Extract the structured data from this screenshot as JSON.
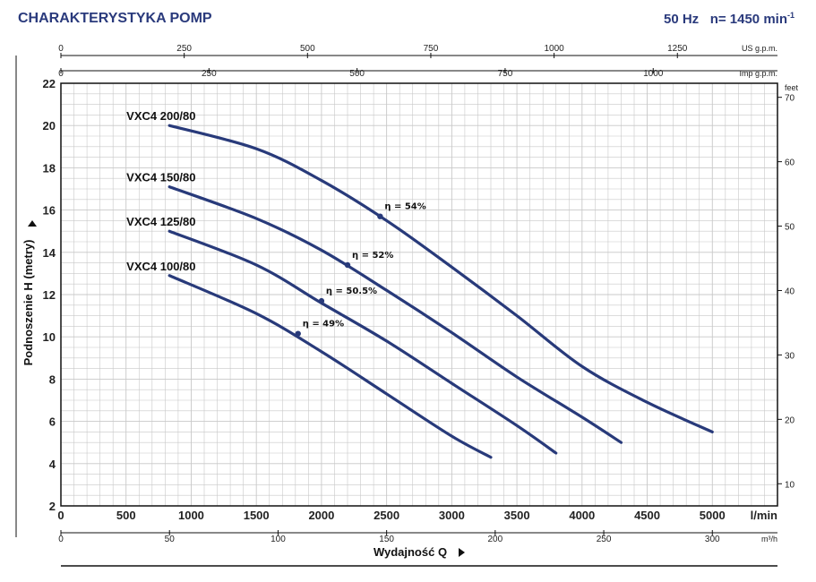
{
  "header": {
    "title": "CHARAKTERYSTYKA POMP",
    "freq": "50 Hz",
    "speed": "n= 1450 min",
    "speed_exp": "-1"
  },
  "axes": {
    "us_gpm": {
      "unit": "US g.p.m.",
      "ticks": [
        "0",
        "250",
        "500",
        "750",
        "1000",
        "1250"
      ],
      "values": [
        0,
        250,
        500,
        750,
        1000,
        1250
      ]
    },
    "imp_gpm": {
      "unit": "Imp g.p.m.",
      "ticks": [
        "0",
        "250",
        "500",
        "750",
        "1000"
      ],
      "values": [
        0,
        250,
        500,
        750,
        1000
      ]
    },
    "lmin": {
      "unit": "l/min",
      "ticks": [
        "0",
        "500",
        "1000",
        "1500",
        "2000",
        "2500",
        "3000",
        "3500",
        "4000",
        "4500",
        "5000"
      ],
      "values": [
        0,
        500,
        1000,
        1500,
        2000,
        2500,
        3000,
        3500,
        4000,
        4500,
        5000
      ]
    },
    "m3h": {
      "unit": "m³/h",
      "ticks": [
        "0",
        "50",
        "100",
        "150",
        "200",
        "250",
        "300"
      ],
      "values": [
        0,
        50,
        100,
        150,
        200,
        250,
        300
      ]
    },
    "h_m": {
      "ticks": [
        "2",
        "4",
        "6",
        "8",
        "10",
        "12",
        "14",
        "16",
        "18",
        "20",
        "22"
      ],
      "values": [
        2,
        4,
        6,
        8,
        10,
        12,
        14,
        16,
        18,
        20,
        22
      ]
    },
    "feet": {
      "unit": "feet",
      "ticks": [
        "10",
        "20",
        "30",
        "40",
        "50",
        "60",
        "70"
      ],
      "values": [
        10,
        20,
        30,
        40,
        50,
        60,
        70
      ]
    }
  },
  "ylabel": "Podnoszenie H (metry)",
  "xlabel": "Wydajność Q",
  "chart_data": {
    "type": "line",
    "x_unit": "l/min",
    "y_unit": "m",
    "xlim": [
      0,
      5500
    ],
    "ylim": [
      2,
      22
    ],
    "grid": true,
    "series": [
      {
        "name": "VXC4 200/80",
        "x": [
          833,
          1500,
          2000,
          2500,
          3000,
          3500,
          4000,
          4500,
          5000
        ],
        "y": [
          20.0,
          18.9,
          17.4,
          15.5,
          13.3,
          11.0,
          8.6,
          6.9,
          5.5
        ],
        "eta": {
          "label": "η = 54%",
          "x": 2450,
          "y": 15.7
        }
      },
      {
        "name": "VXC4 150/80",
        "x": [
          833,
          1500,
          2000,
          2500,
          3000,
          3500,
          4000,
          4300
        ],
        "y": [
          17.1,
          15.6,
          14.1,
          12.2,
          10.2,
          8.1,
          6.2,
          5.0
        ],
        "eta": {
          "label": "η = 52%",
          "x": 2200,
          "y": 13.4
        }
      },
      {
        "name": "VXC4 125/80",
        "x": [
          833,
          1500,
          2000,
          2500,
          3000,
          3500,
          3800
        ],
        "y": [
          15.0,
          13.4,
          11.6,
          9.8,
          7.8,
          5.8,
          4.5
        ],
        "eta": {
          "label": "η = 50.5%",
          "x": 2000,
          "y": 11.7
        }
      },
      {
        "name": "VXC4 100/80",
        "x": [
          833,
          1500,
          2000,
          2500,
          3000,
          3300
        ],
        "y": [
          12.9,
          11.1,
          9.3,
          7.3,
          5.3,
          4.3
        ],
        "eta": {
          "label": "η = 49%",
          "x": 1820,
          "y": 10.15
        }
      }
    ]
  },
  "colors": {
    "curve": "#283a7a",
    "title": "#2a3a7c",
    "grid": "#c8c8c8"
  }
}
